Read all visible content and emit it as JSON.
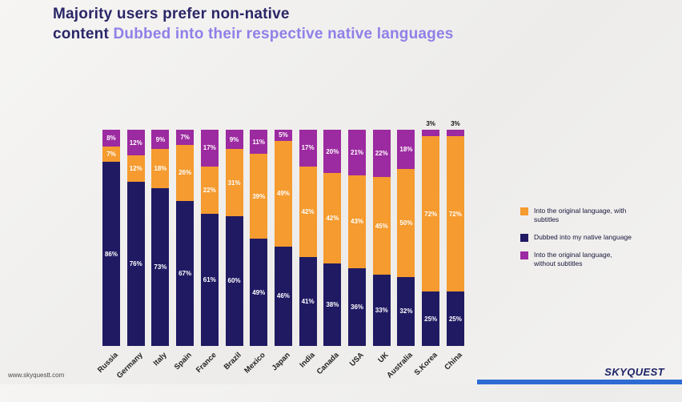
{
  "title": {
    "line1": "Majority users prefer non-native",
    "line2_prefix": "content ",
    "line2_highlight": "Dubbed into their respective native languages"
  },
  "colors": {
    "navy": "#201A63",
    "orange": "#F59B2F",
    "purple": "#9C2AA0",
    "title_navy": "#2B2768",
    "title_purple": "#8F80E8",
    "footer_blue": "#2E6BD3"
  },
  "chart_data": {
    "type": "bar",
    "stacked": true,
    "value_suffix": "%",
    "categories": [
      "Russia",
      "Germany",
      "Italy",
      "Spain",
      "France",
      "Brazil",
      "Mexico",
      "Japan",
      "India",
      "Canada",
      "USA",
      "UK",
      "Australia",
      "S.Korea",
      "China"
    ],
    "series": [
      {
        "name": "Dubbed into my native language",
        "color_key": "navy",
        "values": [
          86,
          76,
          73,
          67,
          61,
          60,
          49,
          46,
          41,
          38,
          36,
          33,
          32,
          25,
          25
        ]
      },
      {
        "name": "Into the original language, with subtitles",
        "color_key": "orange",
        "values": [
          7,
          12,
          18,
          26,
          22,
          31,
          39,
          49,
          42,
          42,
          43,
          45,
          50,
          72,
          72
        ]
      },
      {
        "name": "Into the original language, without subtitles",
        "color_key": "purple",
        "values": [
          8,
          12,
          9,
          7,
          17,
          9,
          11,
          5,
          17,
          20,
          21,
          22,
          18,
          3,
          3
        ]
      }
    ],
    "ylim": [
      0,
      100
    ],
    "grid": false,
    "legend_position": "right"
  },
  "legend": [
    {
      "label": "Into the original language, with subtitles",
      "color_key": "orange"
    },
    {
      "label": "Dubbed into my native language",
      "color_key": "navy"
    },
    {
      "label": "Into the original language, without subtitles",
      "color_key": "purple"
    }
  ],
  "footer": {
    "website": "www.skyquestt.com",
    "brand": "SKYQUEST"
  }
}
